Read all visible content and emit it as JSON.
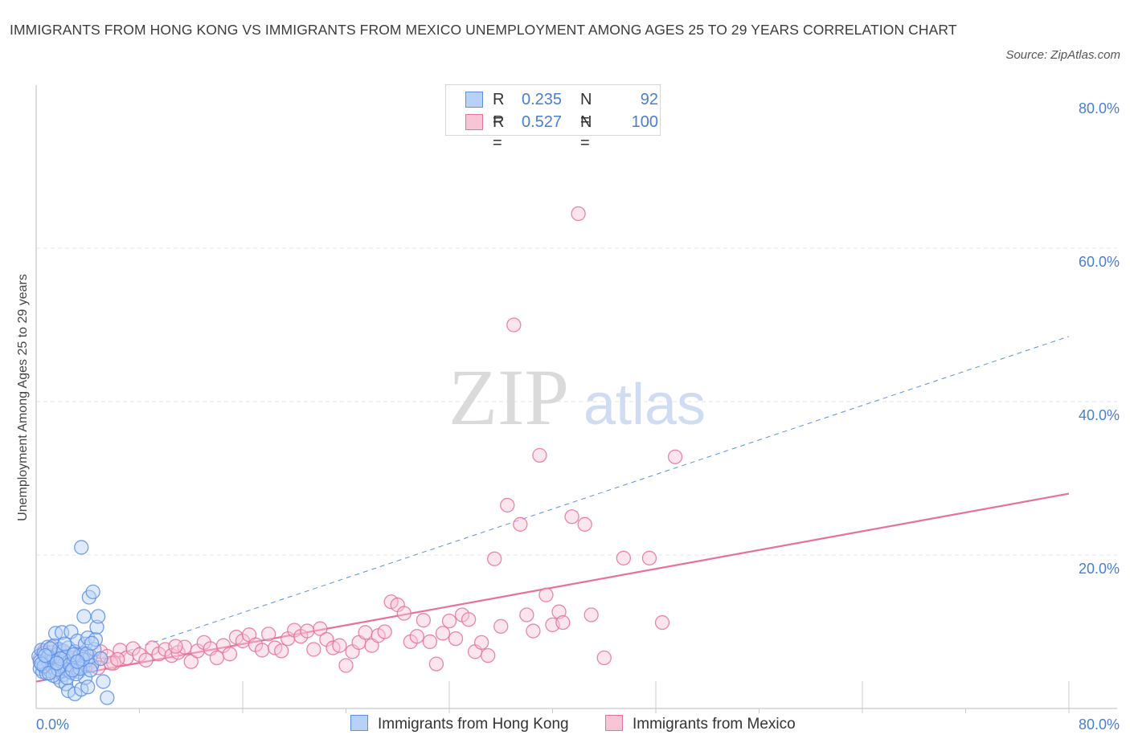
{
  "title": "IMMIGRANTS FROM HONG KONG VS IMMIGRANTS FROM MEXICO UNEMPLOYMENT AMONG AGES 25 TO 29 YEARS CORRELATION CHART",
  "source": "Source: ZipAtlas.com",
  "watermark": {
    "zip": "ZIP",
    "atlas": "atlas"
  },
  "legend": {
    "rows": [
      {
        "r_label": "R =",
        "r_value": "0.235",
        "n_label": "N =",
        "n_value": "92",
        "color": "#6b9cf0"
      },
      {
        "r_label": "R =",
        "r_value": "0.527",
        "n_label": "N =",
        "n_value": "100",
        "color": "#f19ab8"
      }
    ]
  },
  "bottom_legend": [
    "Immigrants from Hong Kong",
    "Immigrants from Mexico"
  ],
  "colors": {
    "blue": "#5b8fe6",
    "blue_fill": "#b9d0f7",
    "pink": "#e8719a",
    "pink_fill": "#f8c5d6",
    "tick": "#4a7fd0"
  },
  "chart_data": {
    "type": "scatter",
    "title": "IMMIGRANTS FROM HONG KONG VS IMMIGRANTS FROM MEXICO UNEMPLOYMENT AMONG AGES 25 TO 29 YEARS CORRELATION CHART",
    "xlabel": "",
    "ylabel": "Unemployment Among Ages 25 to 29 years",
    "xlim": [
      0,
      80
    ],
    "ylim": [
      0,
      80
    ],
    "x_tick_labels": [
      "0.0%",
      "80.0%"
    ],
    "y_tick_labels": [
      "20.0%",
      "40.0%",
      "60.0%",
      "80.0%"
    ],
    "grid": true,
    "series": [
      {
        "name": "Immigrants from Hong Kong",
        "r": 0.235,
        "n": 92,
        "trend": {
          "x": [
            0,
            80
          ],
          "y": [
            3.5,
            48.5
          ],
          "style": "dashed"
        },
        "points": [
          [
            0.2,
            6.8
          ],
          [
            0.3,
            5.2
          ],
          [
            0.4,
            7.6
          ],
          [
            0.5,
            6.0
          ],
          [
            0.5,
            4.8
          ],
          [
            0.6,
            7.2
          ],
          [
            0.7,
            5.6
          ],
          [
            0.8,
            6.4
          ],
          [
            0.8,
            4.6
          ],
          [
            0.9,
            8.0
          ],
          [
            1.0,
            5.8
          ],
          [
            1.0,
            6.9
          ],
          [
            1.1,
            4.9
          ],
          [
            1.2,
            7.3
          ],
          [
            1.2,
            6.1
          ],
          [
            1.3,
            5.3
          ],
          [
            1.4,
            8.2
          ],
          [
            1.4,
            6.6
          ],
          [
            1.5,
            5.0
          ],
          [
            1.5,
            9.8
          ],
          [
            1.6,
            7.0
          ],
          [
            1.6,
            4.1
          ],
          [
            1.7,
            6.3
          ],
          [
            1.8,
            5.5
          ],
          [
            1.8,
            7.7
          ],
          [
            1.9,
            3.6
          ],
          [
            2.0,
            6.0
          ],
          [
            2.0,
            9.9
          ],
          [
            2.1,
            4.4
          ],
          [
            2.1,
            7.5
          ],
          [
            2.2,
            5.8
          ],
          [
            2.3,
            6.8
          ],
          [
            2.3,
            3.2
          ],
          [
            2.4,
            5.1
          ],
          [
            2.5,
            7.9
          ],
          [
            2.5,
            2.3
          ],
          [
            2.6,
            6.2
          ],
          [
            2.7,
            4.7
          ],
          [
            2.7,
            10.0
          ],
          [
            2.8,
            6.6
          ],
          [
            2.9,
            5.3
          ],
          [
            3.0,
            7.4
          ],
          [
            3.0,
            1.9
          ],
          [
            3.1,
            6.0
          ],
          [
            3.2,
            8.8
          ],
          [
            3.3,
            4.8
          ],
          [
            3.3,
            5.9
          ],
          [
            3.4,
            6.9
          ],
          [
            3.5,
            2.5
          ],
          [
            3.5,
            21.0
          ],
          [
            3.6,
            5.4
          ],
          [
            3.7,
            7.2
          ],
          [
            3.8,
            4.0
          ],
          [
            3.8,
            8.4
          ],
          [
            3.9,
            6.3
          ],
          [
            4.0,
            9.2
          ],
          [
            4.0,
            2.8
          ],
          [
            4.1,
            14.5
          ],
          [
            4.2,
            6.8
          ],
          [
            4.3,
            5.6
          ],
          [
            4.4,
            15.2
          ],
          [
            4.5,
            7.7
          ],
          [
            4.6,
            9.0
          ],
          [
            4.7,
            10.6
          ],
          [
            4.8,
            12.0
          ],
          [
            5.0,
            6.5
          ],
          [
            5.2,
            3.5
          ],
          [
            5.5,
            1.4
          ],
          [
            0.3,
            6.1
          ],
          [
            0.6,
            5.5
          ],
          [
            0.9,
            6.7
          ],
          [
            1.1,
            7.8
          ],
          [
            1.3,
            4.3
          ],
          [
            1.7,
            5.1
          ],
          [
            1.9,
            6.5
          ],
          [
            2.2,
            8.4
          ],
          [
            2.4,
            4.0
          ],
          [
            2.6,
            5.7
          ],
          [
            2.9,
            7.0
          ],
          [
            3.1,
            4.5
          ],
          [
            3.4,
            5.2
          ],
          [
            3.6,
            6.4
          ],
          [
            3.9,
            7.1
          ],
          [
            4.2,
            5.0
          ],
          [
            0.4,
            5.8
          ],
          [
            0.7,
            6.9
          ],
          [
            1.0,
            4.6
          ],
          [
            1.6,
            5.9
          ],
          [
            2.8,
            5.0
          ],
          [
            3.2,
            6.1
          ],
          [
            3.7,
            12.0
          ],
          [
            4.3,
            8.5
          ]
        ]
      },
      {
        "name": "Immigrants from Mexico",
        "r": 0.527,
        "n": 100,
        "trend": {
          "x": [
            0,
            80
          ],
          "y": [
            3.5,
            28.0
          ],
          "style": "solid"
        },
        "points": [
          [
            0.3,
            6.5
          ],
          [
            0.6,
            7.5
          ],
          [
            1.0,
            5.7
          ],
          [
            1.4,
            6.8
          ],
          [
            1.8,
            6.0
          ],
          [
            2.2,
            7.2
          ],
          [
            2.6,
            5.3
          ],
          [
            3.0,
            6.5
          ],
          [
            3.5,
            7.0
          ],
          [
            4.0,
            5.8
          ],
          [
            4.5,
            6.2
          ],
          [
            5.0,
            7.4
          ],
          [
            5.5,
            6.8
          ],
          [
            6.0,
            5.9
          ],
          [
            6.5,
            7.6
          ],
          [
            7.0,
            6.6
          ],
          [
            7.5,
            7.8
          ],
          [
            8.0,
            7.0
          ],
          [
            8.5,
            6.3
          ],
          [
            9.0,
            7.9
          ],
          [
            9.5,
            7.1
          ],
          [
            10.0,
            7.7
          ],
          [
            10.5,
            6.9
          ],
          [
            11.0,
            7.3
          ],
          [
            11.5,
            8.0
          ],
          [
            12.0,
            6.1
          ],
          [
            12.5,
            7.5
          ],
          [
            13.0,
            8.6
          ],
          [
            13.5,
            7.8
          ],
          [
            14.0,
            6.6
          ],
          [
            14.5,
            8.2
          ],
          [
            15.0,
            7.1
          ],
          [
            15.5,
            9.3
          ],
          [
            16.0,
            8.8
          ],
          [
            16.5,
            9.6
          ],
          [
            17.0,
            8.3
          ],
          [
            17.5,
            7.6
          ],
          [
            18.0,
            9.7
          ],
          [
            18.5,
            7.9
          ],
          [
            19.0,
            7.5
          ],
          [
            19.5,
            9.1
          ],
          [
            20.0,
            10.2
          ],
          [
            20.5,
            9.4
          ],
          [
            21.0,
            10.1
          ],
          [
            21.5,
            7.7
          ],
          [
            22.0,
            10.4
          ],
          [
            22.5,
            9.0
          ],
          [
            23.0,
            7.9
          ],
          [
            23.5,
            8.2
          ],
          [
            24.0,
            5.6
          ],
          [
            24.5,
            7.4
          ],
          [
            25.0,
            8.6
          ],
          [
            25.5,
            9.9
          ],
          [
            26.0,
            8.2
          ],
          [
            26.5,
            9.5
          ],
          [
            27.0,
            10.0
          ],
          [
            27.5,
            13.9
          ],
          [
            28.0,
            13.5
          ],
          [
            28.5,
            12.4
          ],
          [
            29.0,
            8.7
          ],
          [
            29.5,
            9.4
          ],
          [
            30.0,
            11.5
          ],
          [
            30.5,
            8.7
          ],
          [
            31.0,
            5.8
          ],
          [
            31.5,
            9.8
          ],
          [
            32.0,
            11.4
          ],
          [
            32.5,
            9.1
          ],
          [
            33.0,
            12.2
          ],
          [
            33.5,
            11.6
          ],
          [
            34.0,
            7.4
          ],
          [
            34.5,
            8.6
          ],
          [
            35.0,
            6.9
          ],
          [
            35.5,
            19.5
          ],
          [
            36.0,
            10.7
          ],
          [
            36.5,
            26.5
          ],
          [
            37.0,
            50.0
          ],
          [
            37.5,
            24.0
          ],
          [
            38.0,
            12.2
          ],
          [
            38.5,
            10.1
          ],
          [
            39.0,
            33.0
          ],
          [
            39.5,
            14.8
          ],
          [
            40.0,
            10.9
          ],
          [
            40.5,
            12.6
          ],
          [
            41.5,
            25.0
          ],
          [
            42.0,
            64.5
          ],
          [
            42.5,
            24.0
          ],
          [
            43.0,
            12.2
          ],
          [
            44.0,
            6.6
          ],
          [
            45.5,
            19.6
          ],
          [
            47.5,
            19.6
          ],
          [
            48.5,
            11.2
          ],
          [
            49.5,
            32.8
          ],
          [
            1.2,
            8.0
          ],
          [
            2.0,
            6.4
          ],
          [
            3.3,
            5.5
          ],
          [
            4.8,
            5.3
          ],
          [
            5.8,
            5.9
          ],
          [
            6.3,
            6.4
          ],
          [
            10.8,
            8.1
          ],
          [
            40.8,
            11.2
          ]
        ]
      }
    ]
  }
}
